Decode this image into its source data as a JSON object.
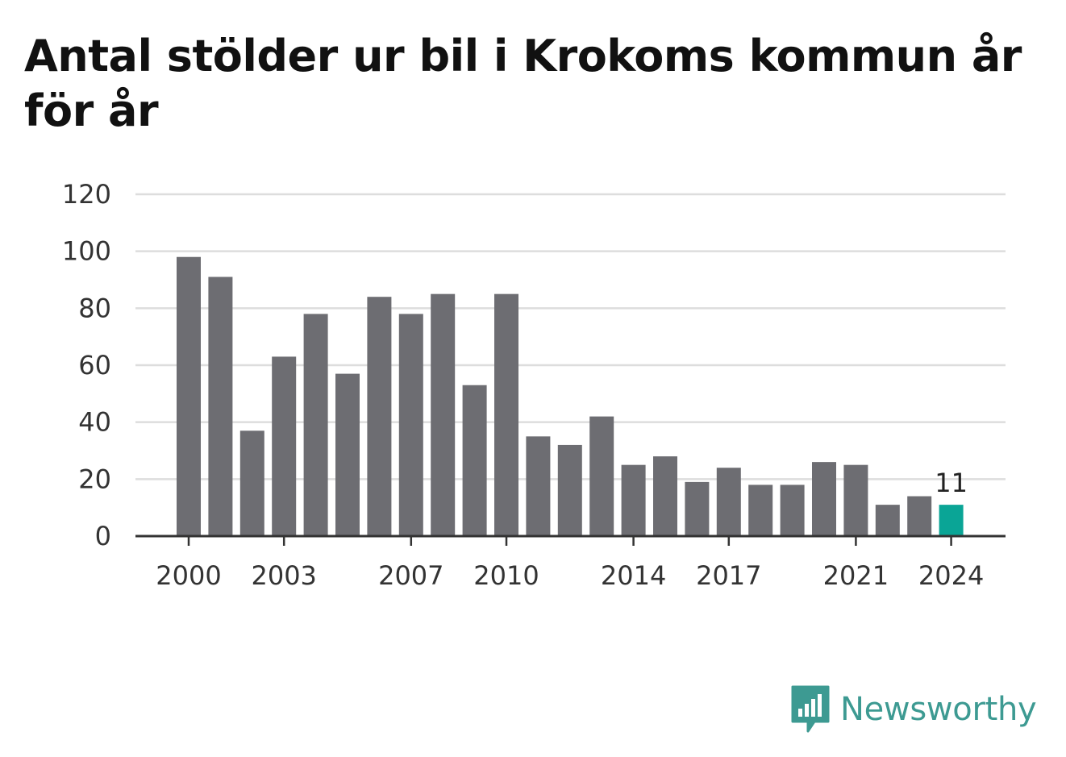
{
  "chart_data": {
    "type": "bar",
    "title": "Antal stölder ur bil i Krokoms kommun år för år",
    "xlabel": "",
    "ylabel": "",
    "ylim": [
      0,
      120
    ],
    "yticks": [
      0,
      20,
      40,
      60,
      80,
      100,
      120
    ],
    "xtick_labels": [
      "2000",
      "2003",
      "2007",
      "2010",
      "2014",
      "2017",
      "2021",
      "2024"
    ],
    "categories": [
      "2000",
      "2001",
      "2002",
      "2003",
      "2004",
      "2005",
      "2006",
      "2007",
      "2008",
      "2009",
      "2010",
      "2011",
      "2012",
      "2013",
      "2014",
      "2015",
      "2016",
      "2017",
      "2018",
      "2019",
      "2020",
      "2021",
      "2022",
      "2023",
      "2024"
    ],
    "values": [
      98,
      91,
      37,
      63,
      78,
      57,
      84,
      78,
      85,
      53,
      85,
      35,
      32,
      42,
      25,
      28,
      19,
      24,
      18,
      18,
      26,
      25,
      11,
      14,
      11
    ],
    "highlight": {
      "category": "2024",
      "label": "11"
    },
    "colors": {
      "bar": "#6d6d72",
      "highlight": "#0aa596",
      "grid": "#dddddd",
      "axis": "#333333"
    },
    "grid": true,
    "legend": "none"
  },
  "brand": {
    "name": "Newsworthy",
    "icon": "newsworthy-logo-icon",
    "color": "#3d9a92"
  }
}
